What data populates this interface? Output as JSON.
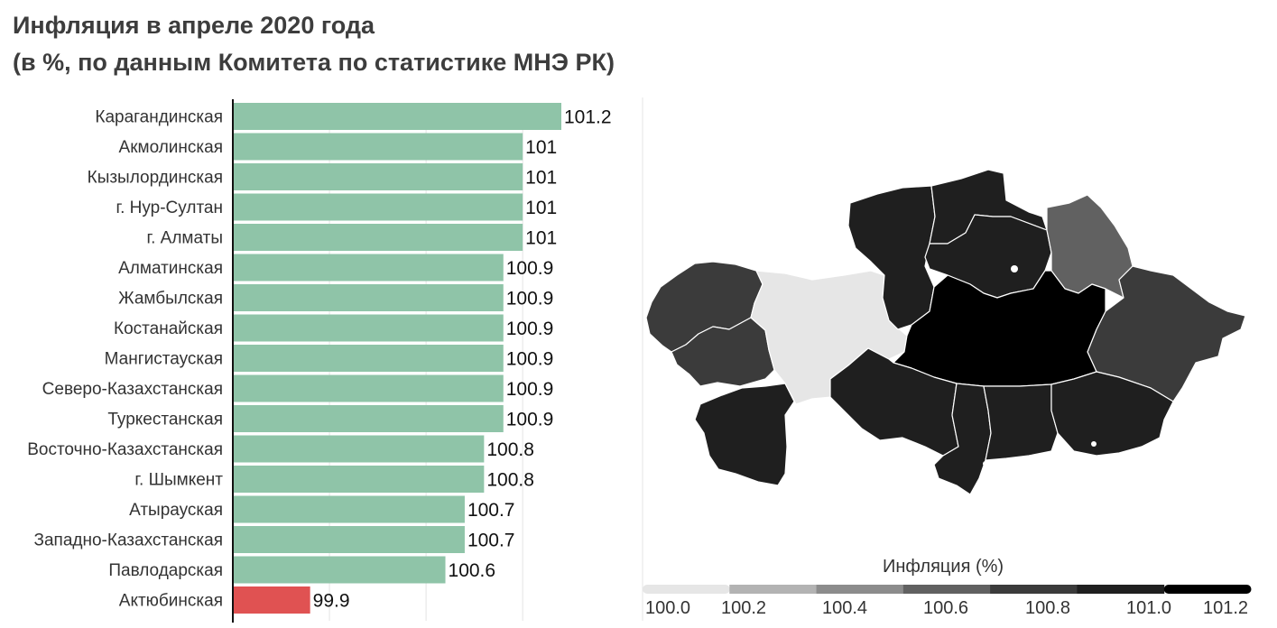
{
  "header": {
    "title": "Инфляция в апреле 2020 года",
    "subtitle": "(в %, по данным Комитета по статистике МНЭ РК)"
  },
  "chart_data": {
    "type": "bar",
    "orientation": "horizontal",
    "categories": [
      "Карагандинская",
      "Акмолинская",
      "Кызылординская",
      "г. Нур-Султан",
      "г. Алматы",
      "Алматинская",
      "Жамбылская",
      "Костанайская",
      "Мангистауская",
      "Северо-Казахстанская",
      "Туркестанская",
      "Восточно-Казахстанская",
      "г. Шымкент",
      "Атырауская",
      "Западно-Казахстанская",
      "Павлодарская",
      "Актюбинская"
    ],
    "values": [
      101.2,
      101,
      101,
      101,
      101,
      100.9,
      100.9,
      100.9,
      100.9,
      100.9,
      100.9,
      100.8,
      100.8,
      100.7,
      100.7,
      100.6,
      99.9
    ],
    "value_labels": [
      "101.2",
      "101",
      "101",
      "101",
      "101",
      "100.9",
      "100.9",
      "100.9",
      "100.9",
      "100.9",
      "100.9",
      "100.8",
      "100.8",
      "100.7",
      "100.7",
      "100.6",
      "99.9"
    ],
    "xlim": [
      99.5,
      101.2
    ],
    "grid": true,
    "colors": {
      "bar": "#8fc4a8",
      "bar_low": "#e05252",
      "axis": "#111111",
      "grid": "#e4e4e4"
    }
  },
  "map": {
    "legend_title": "Инфляция (%)",
    "legend_ticks": [
      "100.0",
      "100.2",
      "100.4",
      "100.6",
      "100.8",
      "101.0",
      "101.2"
    ],
    "legend_colors": [
      "#e6e6e6",
      "#b3b3b3",
      "#8c8c8c",
      "#616161",
      "#3b3b3b",
      "#1f1f1f",
      "#000000"
    ],
    "regions": [
      {
        "name": "Западно-Казахстанская",
        "value": 100.7
      },
      {
        "name": "Атырауская",
        "value": 100.7
      },
      {
        "name": "Актюбинская",
        "value": 99.9
      },
      {
        "name": "Мангистауская",
        "value": 100.9
      },
      {
        "name": "Костанайская",
        "value": 100.9
      },
      {
        "name": "Северо-Казахстанская",
        "value": 100.9
      },
      {
        "name": "Акмолинская",
        "value": 101
      },
      {
        "name": "Павлодарская",
        "value": 100.6
      },
      {
        "name": "Восточно-Казахстанская",
        "value": 100.8
      },
      {
        "name": "Карагандинская",
        "value": 101.2
      },
      {
        "name": "Кызылординская",
        "value": 101
      },
      {
        "name": "Туркестанская",
        "value": 100.9
      },
      {
        "name": "Жамбылская",
        "value": 100.9
      },
      {
        "name": "Алматинская",
        "value": 100.9
      }
    ]
  }
}
